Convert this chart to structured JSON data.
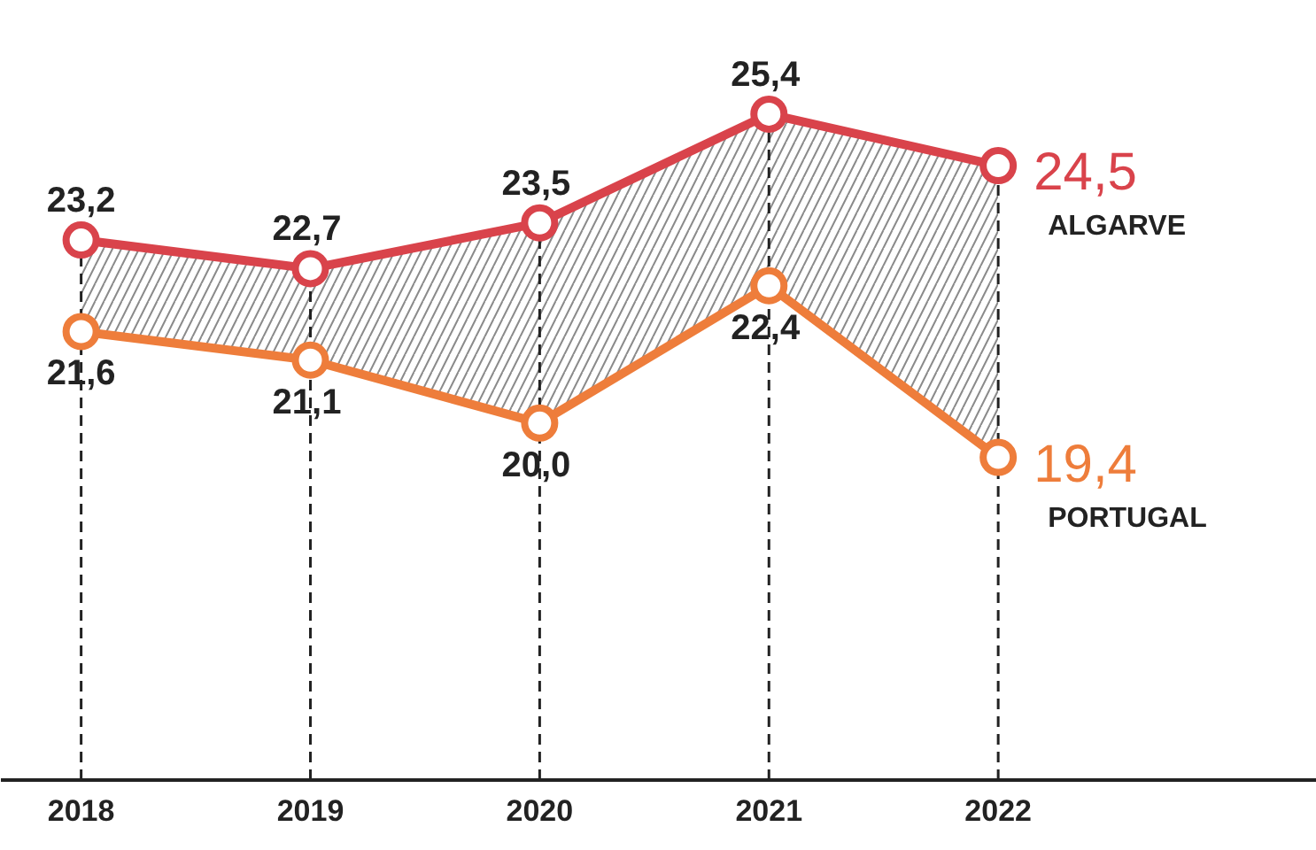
{
  "chart_data": {
    "type": "line",
    "categories": [
      "2018",
      "2019",
      "2020",
      "2021",
      "2022"
    ],
    "marker": "circle",
    "line_style": "solid",
    "grid": "x",
    "series": [
      {
        "name": "ALGARVE",
        "color": "#d9434b",
        "values": [
          23.2,
          22.7,
          23.5,
          25.4,
          24.5
        ],
        "lower": [
          21.6,
          21.1,
          20.0,
          22.4,
          19.4
        ],
        "upper": [
          23.2,
          22.7,
          23.5,
          25.4,
          24.5
        ],
        "value_labels": [
          "23,2",
          "22,7",
          "23,5",
          "25,4",
          "24,5"
        ]
      },
      {
        "name": "PORTUGAL",
        "color": "#ee7d3b",
        "values": [
          21.6,
          21.1,
          20.0,
          22.4,
          19.4
        ],
        "value_labels": [
          "21,6",
          "21,1",
          "20,0",
          "22,4",
          "19,4"
        ]
      }
    ]
  }
}
